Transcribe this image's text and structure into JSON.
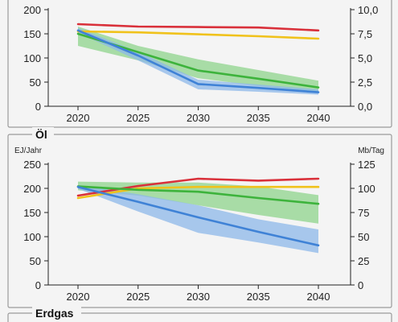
{
  "colors": {
    "red": "#d9303a",
    "yellow": "#f0c21b",
    "green": "#3db33c",
    "blue": "#3f82d6",
    "green_band": "#8fd48c",
    "blue_band": "#8db8ea"
  },
  "chart_data": [
    {
      "type": "line",
      "title": "",
      "x": [
        2020,
        2025,
        2030,
        2035,
        2040
      ],
      "xlim": [
        2020,
        2040
      ],
      "ylim": [
        0,
        200
      ],
      "yticks": [
        0,
        50,
        100,
        150,
        200
      ],
      "y2lim": [
        0,
        10
      ],
      "y2ticks": [
        "0,0",
        "2,5",
        "5,0",
        "7,5",
        "10,0"
      ],
      "ylabel": "",
      "y2label": "",
      "grid": false,
      "series": [
        {
          "values": [
            170,
            165,
            164,
            163,
            157
          ],
          "color": "red"
        },
        {
          "values": [
            155,
            153,
            149,
            145,
            140
          ],
          "color": "yellow"
        },
        {
          "values": [
            150,
            112,
            74,
            57,
            39
          ],
          "color": "green",
          "band_low": [
            125,
            95,
            58,
            42,
            30
          ],
          "band_high": [
            165,
            125,
            97,
            75,
            53
          ]
        },
        {
          "values": [
            157,
            105,
            46,
            38,
            29
          ],
          "color": "blue",
          "band_low": [
            152,
            95,
            35,
            30,
            24
          ],
          "band_high": [
            162,
            113,
            55,
            45,
            35
          ]
        }
      ]
    },
    {
      "type": "line",
      "title": "Öl",
      "x": [
        2020,
        2025,
        2030,
        2035,
        2040
      ],
      "xlim": [
        2020,
        2040
      ],
      "ylim": [
        0,
        250
      ],
      "yticks": [
        0,
        50,
        100,
        150,
        200,
        250
      ],
      "y2lim": [
        0,
        125
      ],
      "y2ticks": [
        "0",
        "25",
        "50",
        "75",
        "100",
        "125"
      ],
      "ylabel": "EJ/Jahr",
      "y2label": "Mb/Tag",
      "grid": false,
      "series": [
        {
          "values": [
            185,
            205,
            220,
            216,
            220
          ],
          "color": "red"
        },
        {
          "values": [
            180,
            200,
            203,
            203,
            203
          ],
          "color": "yellow"
        },
        {
          "values": [
            204,
            197,
            193,
            180,
            168
          ],
          "color": "green",
          "band_low": [
            196,
            185,
            165,
            145,
            127
          ],
          "band_high": [
            214,
            212,
            212,
            204,
            186
          ]
        },
        {
          "values": [
            203,
            172,
            140,
            110,
            82
          ],
          "color": "blue",
          "band_low": [
            199,
            152,
            108,
            88,
            66
          ],
          "band_high": [
            207,
            188,
            165,
            136,
            115
          ]
        }
      ]
    },
    {
      "type": "line",
      "title": "Erdgas",
      "x": [],
      "series": []
    }
  ]
}
